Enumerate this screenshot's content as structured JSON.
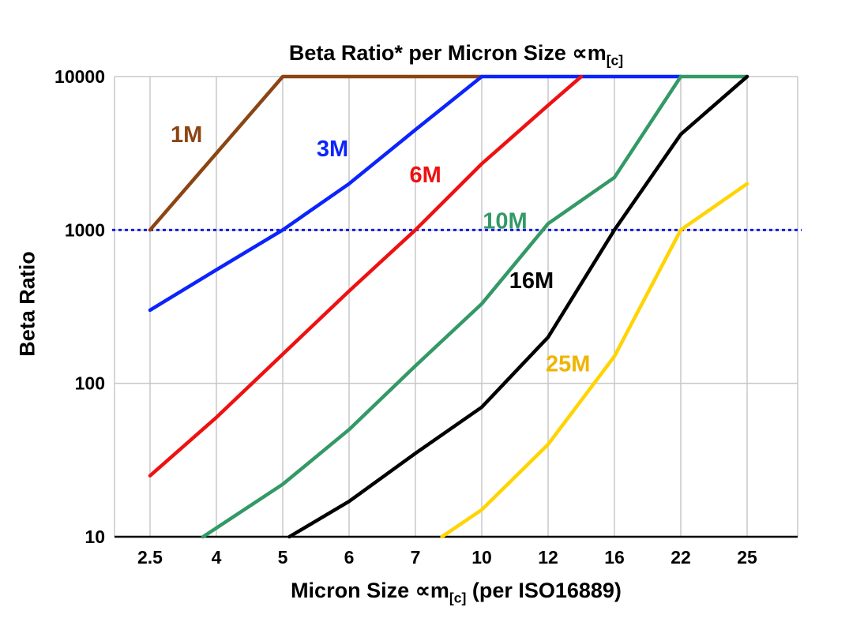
{
  "title": {
    "pre": "Beta Ratio* per Micron Size ∝m",
    "sub": "[c]"
  },
  "y_axis_title": "Beta Ratio",
  "x_axis_title": {
    "pre": "Micron Size ∝m",
    "sub": "[c]",
    "post": " (per ISO16889)"
  },
  "chart_data": {
    "type": "line",
    "title": "Beta Ratio* per Micron Size ∝m[c]",
    "xlabel": "Micron Size ∝m[c] (per ISO16889)",
    "ylabel": "Beta Ratio",
    "x_categories": [
      "2.5",
      "4",
      "5",
      "6",
      "7",
      "10",
      "12",
      "16",
      "22",
      "25"
    ],
    "y_scale": "log",
    "y_ticks": [
      10,
      100,
      1000,
      10000
    ],
    "ylim": [
      10,
      10000
    ],
    "grid": true,
    "grid_color": "#c8c8c8",
    "reference_line": {
      "y": 1000,
      "color": "#1515e6",
      "style": "dotted"
    },
    "series": [
      {
        "name": "1M",
        "color": "#8B4513",
        "points": [
          [
            0,
            1000
          ],
          [
            2,
            10000
          ],
          [
            5,
            10000
          ]
        ]
      },
      {
        "name": "3M",
        "color": "#0B24FB",
        "points": [
          [
            0,
            300
          ],
          [
            1,
            550
          ],
          [
            2,
            1000
          ],
          [
            3,
            2000
          ],
          [
            4,
            4500
          ],
          [
            5,
            10000
          ],
          [
            8,
            10000
          ]
        ]
      },
      {
        "name": "6M",
        "color": "#EE1111",
        "points": [
          [
            0,
            25
          ],
          [
            1,
            60
          ],
          [
            2,
            155
          ],
          [
            3,
            400
          ],
          [
            4,
            1000
          ],
          [
            5,
            2700
          ],
          [
            6,
            6500
          ],
          [
            6.5,
            10000
          ]
        ]
      },
      {
        "name": "10M",
        "color": "#339966",
        "points": [
          [
            0.8,
            10
          ],
          [
            2,
            22
          ],
          [
            3,
            50
          ],
          [
            4,
            130
          ],
          [
            5,
            330
          ],
          [
            6,
            1100
          ],
          [
            7,
            2200
          ],
          [
            8,
            10000
          ],
          [
            9,
            10000
          ]
        ]
      },
      {
        "name": "16M",
        "color": "#000000",
        "points": [
          [
            2.1,
            10
          ],
          [
            3,
            17
          ],
          [
            4,
            35
          ],
          [
            5,
            70
          ],
          [
            6,
            200
          ],
          [
            7,
            1000
          ],
          [
            8,
            4200
          ],
          [
            9,
            10000
          ]
        ]
      },
      {
        "name": "25M",
        "color": "#FFD400",
        "points": [
          [
            4.4,
            10
          ],
          [
            5,
            15
          ],
          [
            6,
            40
          ],
          [
            7,
            150
          ],
          [
            8,
            1000
          ],
          [
            9,
            2000
          ]
        ]
      }
    ],
    "series_labels": [
      {
        "text": "1M",
        "color": "#8B4513",
        "xi": 0.55,
        "v": 4200
      },
      {
        "text": "3M",
        "color": "#0B24FB",
        "xi": 2.75,
        "v": 3400
      },
      {
        "text": "6M",
        "color": "#EE1111",
        "xi": 4.15,
        "v": 2300
      },
      {
        "text": "10M",
        "color": "#339966",
        "xi": 5.35,
        "v": 1150
      },
      {
        "text": "16M",
        "color": "#000000",
        "xi": 5.75,
        "v": 470
      },
      {
        "text": "25M",
        "color": "#F0B400",
        "xi": 6.3,
        "v": 135
      }
    ]
  }
}
